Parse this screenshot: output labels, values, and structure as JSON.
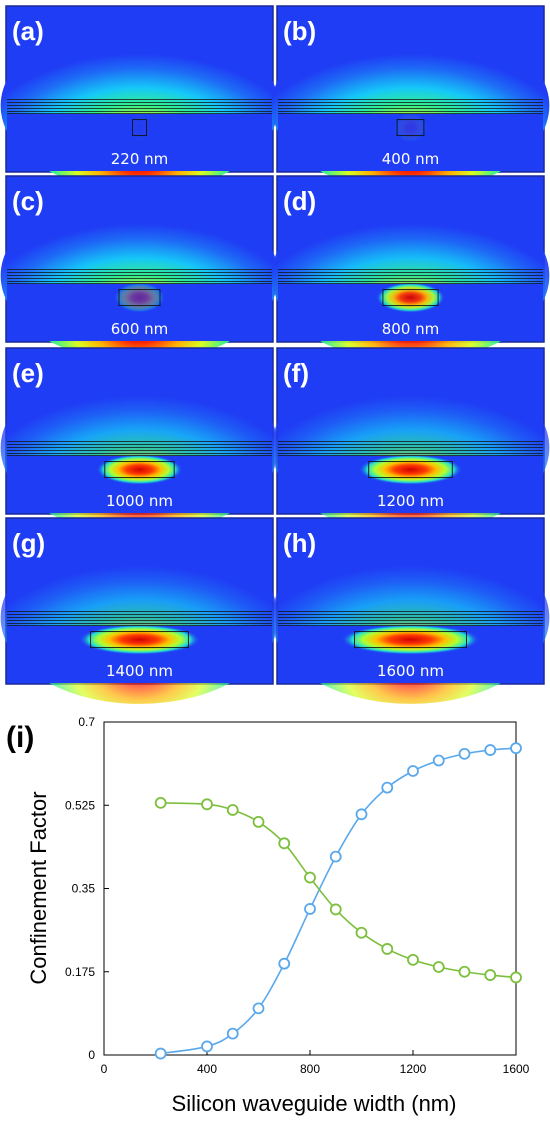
{
  "panels": [
    {
      "letter": "(a)",
      "width_label": "220 nm",
      "width_nm": 220,
      "cap_intensity": 1.0,
      "core_intensity": 0.02
    },
    {
      "letter": "(b)",
      "width_label": "400 nm",
      "width_nm": 400,
      "cap_intensity": 1.0,
      "core_intensity": 0.08
    },
    {
      "letter": "(c)",
      "width_label": "600 nm",
      "width_nm": 600,
      "cap_intensity": 0.98,
      "core_intensity": 0.35
    },
    {
      "letter": "(d)",
      "width_label": "800 nm",
      "width_nm": 800,
      "cap_intensity": 0.92,
      "core_intensity": 0.95
    },
    {
      "letter": "(e)",
      "width_label": "1000 nm",
      "width_nm": 1000,
      "cap_intensity": 0.75,
      "core_intensity": 1.0
    },
    {
      "letter": "(f)",
      "width_label": "1200 nm",
      "width_nm": 1200,
      "cap_intensity": 0.72,
      "core_intensity": 1.0
    },
    {
      "letter": "(g)",
      "width_label": "1400 nm",
      "width_nm": 1400,
      "cap_intensity": 0.7,
      "core_intensity": 1.0
    },
    {
      "letter": "(h)",
      "width_label": "1600 nm",
      "width_nm": 1600,
      "cap_intensity": 0.7,
      "core_intensity": 1.0
    }
  ],
  "plot_letter": "(i)",
  "colors": {
    "field_background": "#1f3df5",
    "series_blue": "#5aa8ec",
    "series_green": "#7bbf3c",
    "panel_border": "#1a2a9a"
  },
  "chart_data": {
    "type": "line",
    "title": "",
    "xlabel": "Silicon waveguide width (nm)",
    "ylabel": "Confinement Factor",
    "xlim": [
      0,
      1600
    ],
    "ylim": [
      0,
      0.7
    ],
    "xticks": [
      0,
      400,
      800,
      1200,
      1600
    ],
    "xtick_labels": [
      "0",
      "400",
      "800",
      "1200",
      "1600"
    ],
    "yticks": [
      0,
      0.175,
      0.35,
      0.525,
      0.7
    ],
    "ytick_labels": [
      "0",
      "0.175",
      "0.35",
      "0.525",
      "0.7"
    ],
    "grid": false,
    "legend": "none",
    "markers": "open-circle",
    "series": [
      {
        "color": "#5aa8ec",
        "x": [
          220,
          400,
          500,
          600,
          700,
          800,
          900,
          1000,
          1100,
          1200,
          1300,
          1400,
          1500,
          1600
        ],
        "y": [
          0.003,
          0.018,
          0.045,
          0.098,
          0.192,
          0.307,
          0.417,
          0.506,
          0.562,
          0.597,
          0.619,
          0.633,
          0.641,
          0.645
        ]
      },
      {
        "color": "#7bbf3c",
        "x": [
          220,
          400,
          500,
          600,
          700,
          800,
          900,
          1000,
          1100,
          1200,
          1300,
          1400,
          1500,
          1600
        ],
        "y": [
          0.53,
          0.527,
          0.515,
          0.49,
          0.445,
          0.373,
          0.306,
          0.257,
          0.223,
          0.2,
          0.185,
          0.175,
          0.168,
          0.163
        ]
      }
    ]
  }
}
